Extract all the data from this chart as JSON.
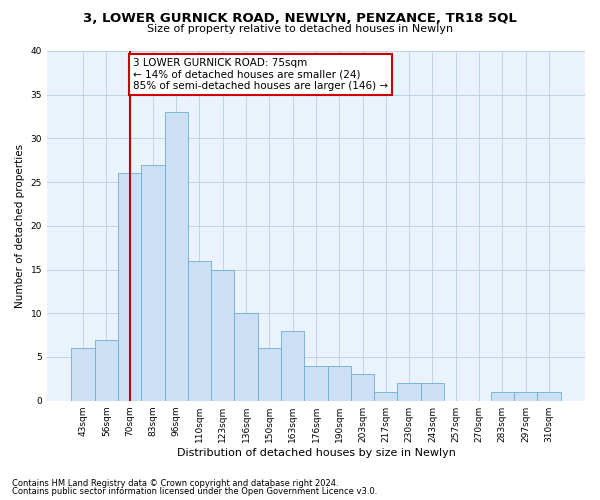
{
  "title": "3, LOWER GURNICK ROAD, NEWLYN, PENZANCE, TR18 5QL",
  "subtitle": "Size of property relative to detached houses in Newlyn",
  "xlabel": "Distribution of detached houses by size in Newlyn",
  "ylabel": "Number of detached properties",
  "categories": [
    "43sqm",
    "56sqm",
    "70sqm",
    "83sqm",
    "96sqm",
    "110sqm",
    "123sqm",
    "136sqm",
    "150sqm",
    "163sqm",
    "176sqm",
    "190sqm",
    "203sqm",
    "217sqm",
    "230sqm",
    "243sqm",
    "257sqm",
    "270sqm",
    "283sqm",
    "297sqm",
    "310sqm"
  ],
  "values": [
    6,
    7,
    26,
    27,
    33,
    16,
    15,
    10,
    6,
    8,
    4,
    4,
    3,
    1,
    2,
    2,
    0,
    0,
    1,
    1,
    1
  ],
  "bar_color": "#cce0f5",
  "bar_edge_color": "#6aaed6",
  "grid_color": "#b8cfe0",
  "bg_color": "#eaf2fb",
  "property_line_x": 2.0,
  "property_label": "3 LOWER GURNICK ROAD: 75sqm",
  "annotation_line1": "← 14% of detached houses are smaller (24)",
  "annotation_line2": "85% of semi-detached houses are larger (146) →",
  "annotation_box_color": "#ffffff",
  "annotation_box_edge_color": "#cc0000",
  "vline_color": "#cc0000",
  "footer_line1": "Contains HM Land Registry data © Crown copyright and database right 2024.",
  "footer_line2": "Contains public sector information licensed under the Open Government Licence v3.0.",
  "ylim": [
    0,
    40
  ],
  "yticks": [
    0,
    5,
    10,
    15,
    20,
    25,
    30,
    35,
    40
  ],
  "title_fontsize": 9.5,
  "subtitle_fontsize": 8,
  "xlabel_fontsize": 8,
  "ylabel_fontsize": 7.5,
  "tick_fontsize": 6.5,
  "footer_fontsize": 6,
  "annotation_fontsize": 7.5
}
